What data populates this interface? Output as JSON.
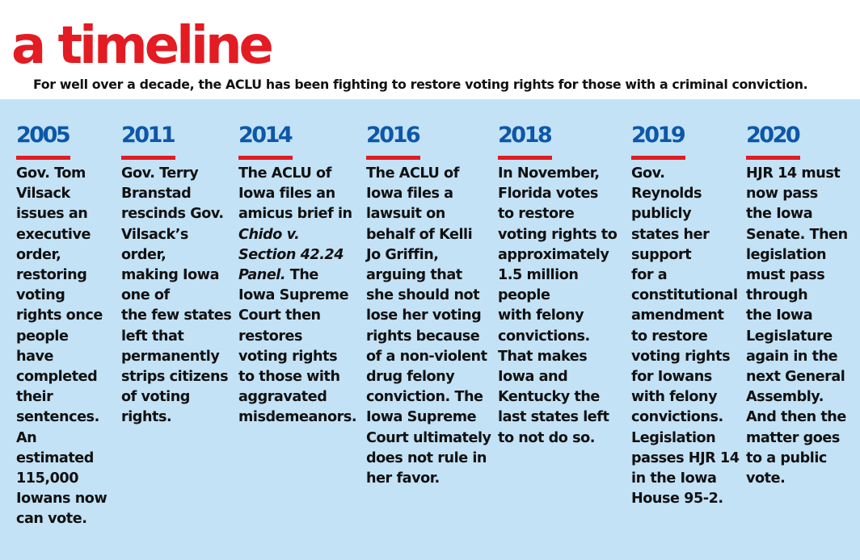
{
  "title": "a timeline",
  "subtitle": "For well over a decade, the ACLU has been fighting to restore voting rights for those with a criminal conviction.",
  "colors": {
    "title_red": "#e31b23",
    "year_blue": "#0d57a8",
    "panel_blue": "#c3e2f6",
    "text": "#111111"
  },
  "timeline": [
    {
      "year": "2005",
      "lines": [
        "Gov. Tom",
        "Vilsack",
        "issues an",
        "executive",
        "order,",
        "restoring",
        "voting",
        "rights once",
        "people",
        "have",
        "completed",
        "their",
        "sentences.",
        "An",
        "estimated",
        "115,000",
        "Iowans now",
        "can vote."
      ]
    },
    {
      "year": "2011",
      "lines": [
        "Gov. Terry",
        "Branstad",
        "rescinds Gov.",
        "Vilsack’s",
        "order,",
        "making Iowa",
        "one of",
        "the few states",
        "left that",
        "permanently",
        "strips citizens",
        "of voting",
        "rights."
      ]
    },
    {
      "year": "2014",
      "lines": [
        "The ACLU of",
        "Iowa files an",
        "amicus brief in",
        "Chido v.",
        "Section 42.24",
        "Panel. The",
        "Iowa Supreme",
        "Court then",
        "restores",
        "voting rights",
        "to those with",
        "aggravated",
        "misdemeanors."
      ]
    },
    {
      "year": "2016",
      "lines": [
        "The ACLU of",
        "Iowa files a",
        "lawsuit on",
        "behalf of Kelli",
        "Jo Griffin,",
        "arguing that",
        "she should not",
        "lose her voting",
        "rights because",
        "of a non-violent",
        "drug felony",
        "conviction. The",
        "Iowa Supreme",
        "Court ultimately",
        "does not rule in",
        "her favor."
      ]
    },
    {
      "year": "2018",
      "lines": [
        "In November,",
        "Florida votes",
        "to restore",
        "voting rights to",
        "approximately",
        "1.5 million",
        "people",
        "with felony",
        "convictions.",
        "That makes",
        "Iowa and",
        "Kentucky the",
        "last states left",
        "to not do so."
      ]
    },
    {
      "year": "2019",
      "lines": [
        "Gov.",
        "Reynolds",
        "publicly",
        "states her",
        "support",
        "for a",
        "constitutional",
        "amendment",
        "to restore",
        "voting rights",
        "for Iowans",
        "with felony",
        "convictions.",
        "Legislation",
        "passes HJR 14",
        "in the Iowa",
        "House 95-2."
      ]
    },
    {
      "year": "2020",
      "lines": [
        "HJR 14 must",
        "now pass",
        "the Iowa",
        "Senate. Then",
        "legislation",
        "must pass",
        "through",
        "the Iowa",
        "Legislature",
        "again in the",
        "next General",
        "Assembly.",
        "And then the",
        "matter  goes",
        "to a public",
        "vote."
      ]
    }
  ]
}
